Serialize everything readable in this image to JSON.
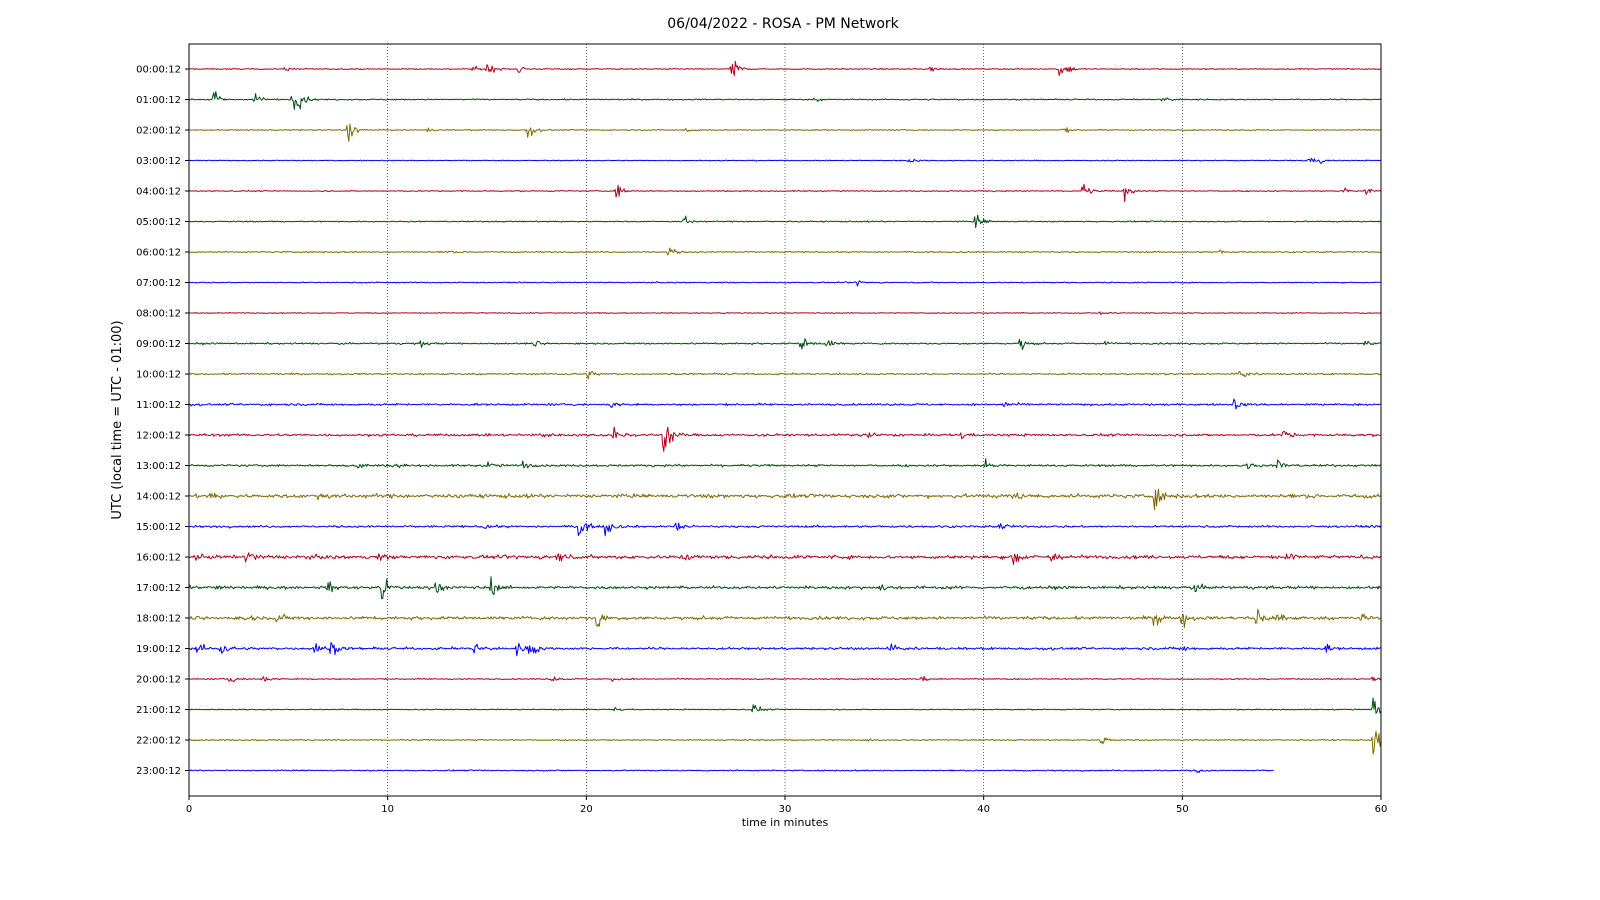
{
  "chart_data": {
    "type": "line",
    "title": "06/04/2022 - ROSA - PM Network",
    "xlabel": "time in minutes",
    "ylabel": "UTC (local time = UTC - 01:00)",
    "xlim": [
      0,
      60
    ],
    "x_ticks": [
      0,
      10,
      20,
      30,
      40,
      50,
      60
    ],
    "grid": "vertical dotted",
    "color_cycle": [
      "#b0001a",
      "#004d0f",
      "#7f6a00",
      "#0000ff"
    ],
    "rows": [
      {
        "label": "00:00:12",
        "end": 60,
        "noise": 0.06,
        "events": [
          [
            4.8,
            0.25
          ],
          [
            14.3,
            0.3
          ],
          [
            15.0,
            0.9
          ],
          [
            16.6,
            0.6
          ],
          [
            27.3,
            1.6
          ],
          [
            37.3,
            0.35
          ],
          [
            43.8,
            0.9
          ],
          [
            44.2,
            0.4
          ]
        ]
      },
      {
        "label": "01:00:12",
        "end": 60,
        "noise": 0.07,
        "events": [
          [
            1.2,
            1.1
          ],
          [
            3.3,
            0.8
          ],
          [
            5.2,
            1.8
          ],
          [
            5.6,
            0.5
          ],
          [
            31.5,
            0.2
          ],
          [
            48.9,
            0.6
          ]
        ]
      },
      {
        "label": "02:00:12",
        "end": 60,
        "noise": 0.06,
        "events": [
          [
            8.0,
            1.6
          ],
          [
            12.0,
            0.2
          ],
          [
            17.0,
            1.2
          ],
          [
            25.0,
            0.4
          ],
          [
            44.0,
            0.4
          ]
        ]
      },
      {
        "label": "03:00:12",
        "end": 60,
        "noise": 0.05,
        "events": [
          [
            36.2,
            0.45
          ],
          [
            56.3,
            0.5
          ],
          [
            56.9,
            0.45
          ]
        ]
      },
      {
        "label": "04:00:12",
        "end": 60,
        "noise": 0.06,
        "events": [
          [
            21.5,
            1.0
          ],
          [
            45.0,
            1.0
          ],
          [
            47.1,
            1.2
          ],
          [
            58.1,
            0.45
          ],
          [
            59.2,
            0.5
          ]
        ]
      },
      {
        "label": "05:00:12",
        "end": 60,
        "noise": 0.07,
        "events": [
          [
            24.9,
            0.7
          ],
          [
            39.6,
            1.1
          ]
        ]
      },
      {
        "label": "06:00:12",
        "end": 60,
        "noise": 0.07,
        "events": [
          [
            12.9,
            0.2
          ],
          [
            24.1,
            0.7
          ],
          [
            51.9,
            0.2
          ]
        ]
      },
      {
        "label": "07:00:12",
        "end": 60,
        "noise": 0.06,
        "events": [
          [
            33.6,
            0.35
          ]
        ]
      },
      {
        "label": "08:00:12",
        "end": 60,
        "noise": 0.05,
        "events": [
          [
            45.9,
            0.3
          ]
        ]
      },
      {
        "label": "09:00:12",
        "end": 60,
        "noise": 0.09,
        "events": [
          [
            11.7,
            0.45
          ],
          [
            17.4,
            0.3
          ],
          [
            30.8,
            1.0
          ],
          [
            32.1,
            0.6
          ],
          [
            41.8,
            1.0
          ],
          [
            46.0,
            0.35
          ],
          [
            59.2,
            0.3
          ]
        ]
      },
      {
        "label": "10:00:12",
        "end": 60,
        "noise": 0.09,
        "events": [
          [
            20.1,
            0.45
          ],
          [
            52.9,
            0.6
          ]
        ]
      },
      {
        "label": "11:00:12",
        "end": 60,
        "noise": 0.12,
        "events": [
          [
            21.2,
            0.4
          ],
          [
            41.0,
            0.4
          ],
          [
            52.6,
            0.7
          ]
        ]
      },
      {
        "label": "12:00:12",
        "end": 60,
        "noise": 0.14,
        "events": [
          [
            17.7,
            0.5
          ],
          [
            21.4,
            1.0
          ],
          [
            23.9,
            3.5
          ],
          [
            34.1,
            0.6
          ],
          [
            38.8,
            0.5
          ],
          [
            55.1,
            0.7
          ]
        ]
      },
      {
        "label": "13:00:12",
        "end": 60,
        "noise": 0.12,
        "events": [
          [
            8.5,
            0.5
          ],
          [
            10.3,
            0.5
          ],
          [
            15.0,
            0.5
          ],
          [
            16.8,
            0.5
          ],
          [
            40.1,
            0.6
          ],
          [
            53.3,
            0.5
          ],
          [
            54.8,
            0.8
          ]
        ]
      },
      {
        "label": "14:00:12",
        "end": 60,
        "noise": 0.22,
        "events": [
          [
            1.0,
            0.5
          ],
          [
            6.5,
            0.4
          ],
          [
            41.5,
            0.5
          ],
          [
            48.6,
            1.4
          ]
        ]
      },
      {
        "label": "15:00:12",
        "end": 60,
        "noise": 0.12,
        "events": [
          [
            14.8,
            0.35
          ],
          [
            19.6,
            1.9
          ],
          [
            20.9,
            1.4
          ],
          [
            24.5,
            0.6
          ],
          [
            40.8,
            0.5
          ]
        ]
      },
      {
        "label": "16:00:12",
        "end": 60,
        "noise": 0.2,
        "events": [
          [
            0.3,
            0.5
          ],
          [
            2.9,
            1.0
          ],
          [
            9.4,
            0.45
          ],
          [
            18.5,
            0.9
          ],
          [
            25.0,
            0.5
          ],
          [
            41.5,
            1.2
          ],
          [
            43.4,
            0.8
          ],
          [
            55.2,
            0.7
          ]
        ]
      },
      {
        "label": "17:00:12",
        "end": 60,
        "noise": 0.16,
        "events": [
          [
            1.4,
            0.4
          ],
          [
            7.0,
            0.6
          ],
          [
            9.7,
            1.4
          ],
          [
            12.4,
            1.0
          ],
          [
            15.2,
            1.0
          ],
          [
            34.8,
            0.4
          ],
          [
            50.6,
            0.5
          ]
        ]
      },
      {
        "label": "18:00:12",
        "end": 60,
        "noise": 0.18,
        "events": [
          [
            2.7,
            0.8
          ],
          [
            4.4,
            0.8
          ],
          [
            20.5,
            1.5
          ],
          [
            48.6,
            1.2
          ],
          [
            50.0,
            1.1
          ],
          [
            53.7,
            1.8
          ],
          [
            54.8,
            1.2
          ],
          [
            59.0,
            0.5
          ]
        ]
      },
      {
        "label": "19:00:12",
        "end": 60,
        "noise": 0.14,
        "events": [
          [
            0.4,
            0.9
          ],
          [
            1.6,
            0.7
          ],
          [
            6.3,
            0.9
          ],
          [
            7.1,
            1.0
          ],
          [
            14.3,
            1.1
          ],
          [
            16.5,
            0.6
          ],
          [
            17.1,
            1.4
          ],
          [
            35.2,
            0.5
          ],
          [
            49.9,
            0.4
          ],
          [
            57.2,
            0.4
          ]
        ]
      },
      {
        "label": "20:00:12",
        "end": 60,
        "noise": 0.07,
        "events": [
          [
            2.0,
            0.55
          ],
          [
            3.7,
            0.5
          ],
          [
            18.3,
            0.3
          ],
          [
            21.3,
            0.3
          ],
          [
            36.9,
            0.4
          ],
          [
            59.6,
            0.6
          ]
        ]
      },
      {
        "label": "21:00:12",
        "end": 60,
        "noise": 0.06,
        "events": [
          [
            21.4,
            0.3
          ],
          [
            28.4,
            0.8
          ],
          [
            59.6,
            1.5
          ]
        ]
      },
      {
        "label": "22:00:12",
        "end": 60,
        "noise": 0.07,
        "events": [
          [
            34.0,
            0.2
          ],
          [
            45.9,
            0.6
          ],
          [
            59.6,
            2.2
          ]
        ]
      },
      {
        "label": "23:00:12",
        "end": 54.6,
        "noise": 0.07,
        "events": [
          [
            50.7,
            0.3
          ]
        ]
      }
    ]
  }
}
